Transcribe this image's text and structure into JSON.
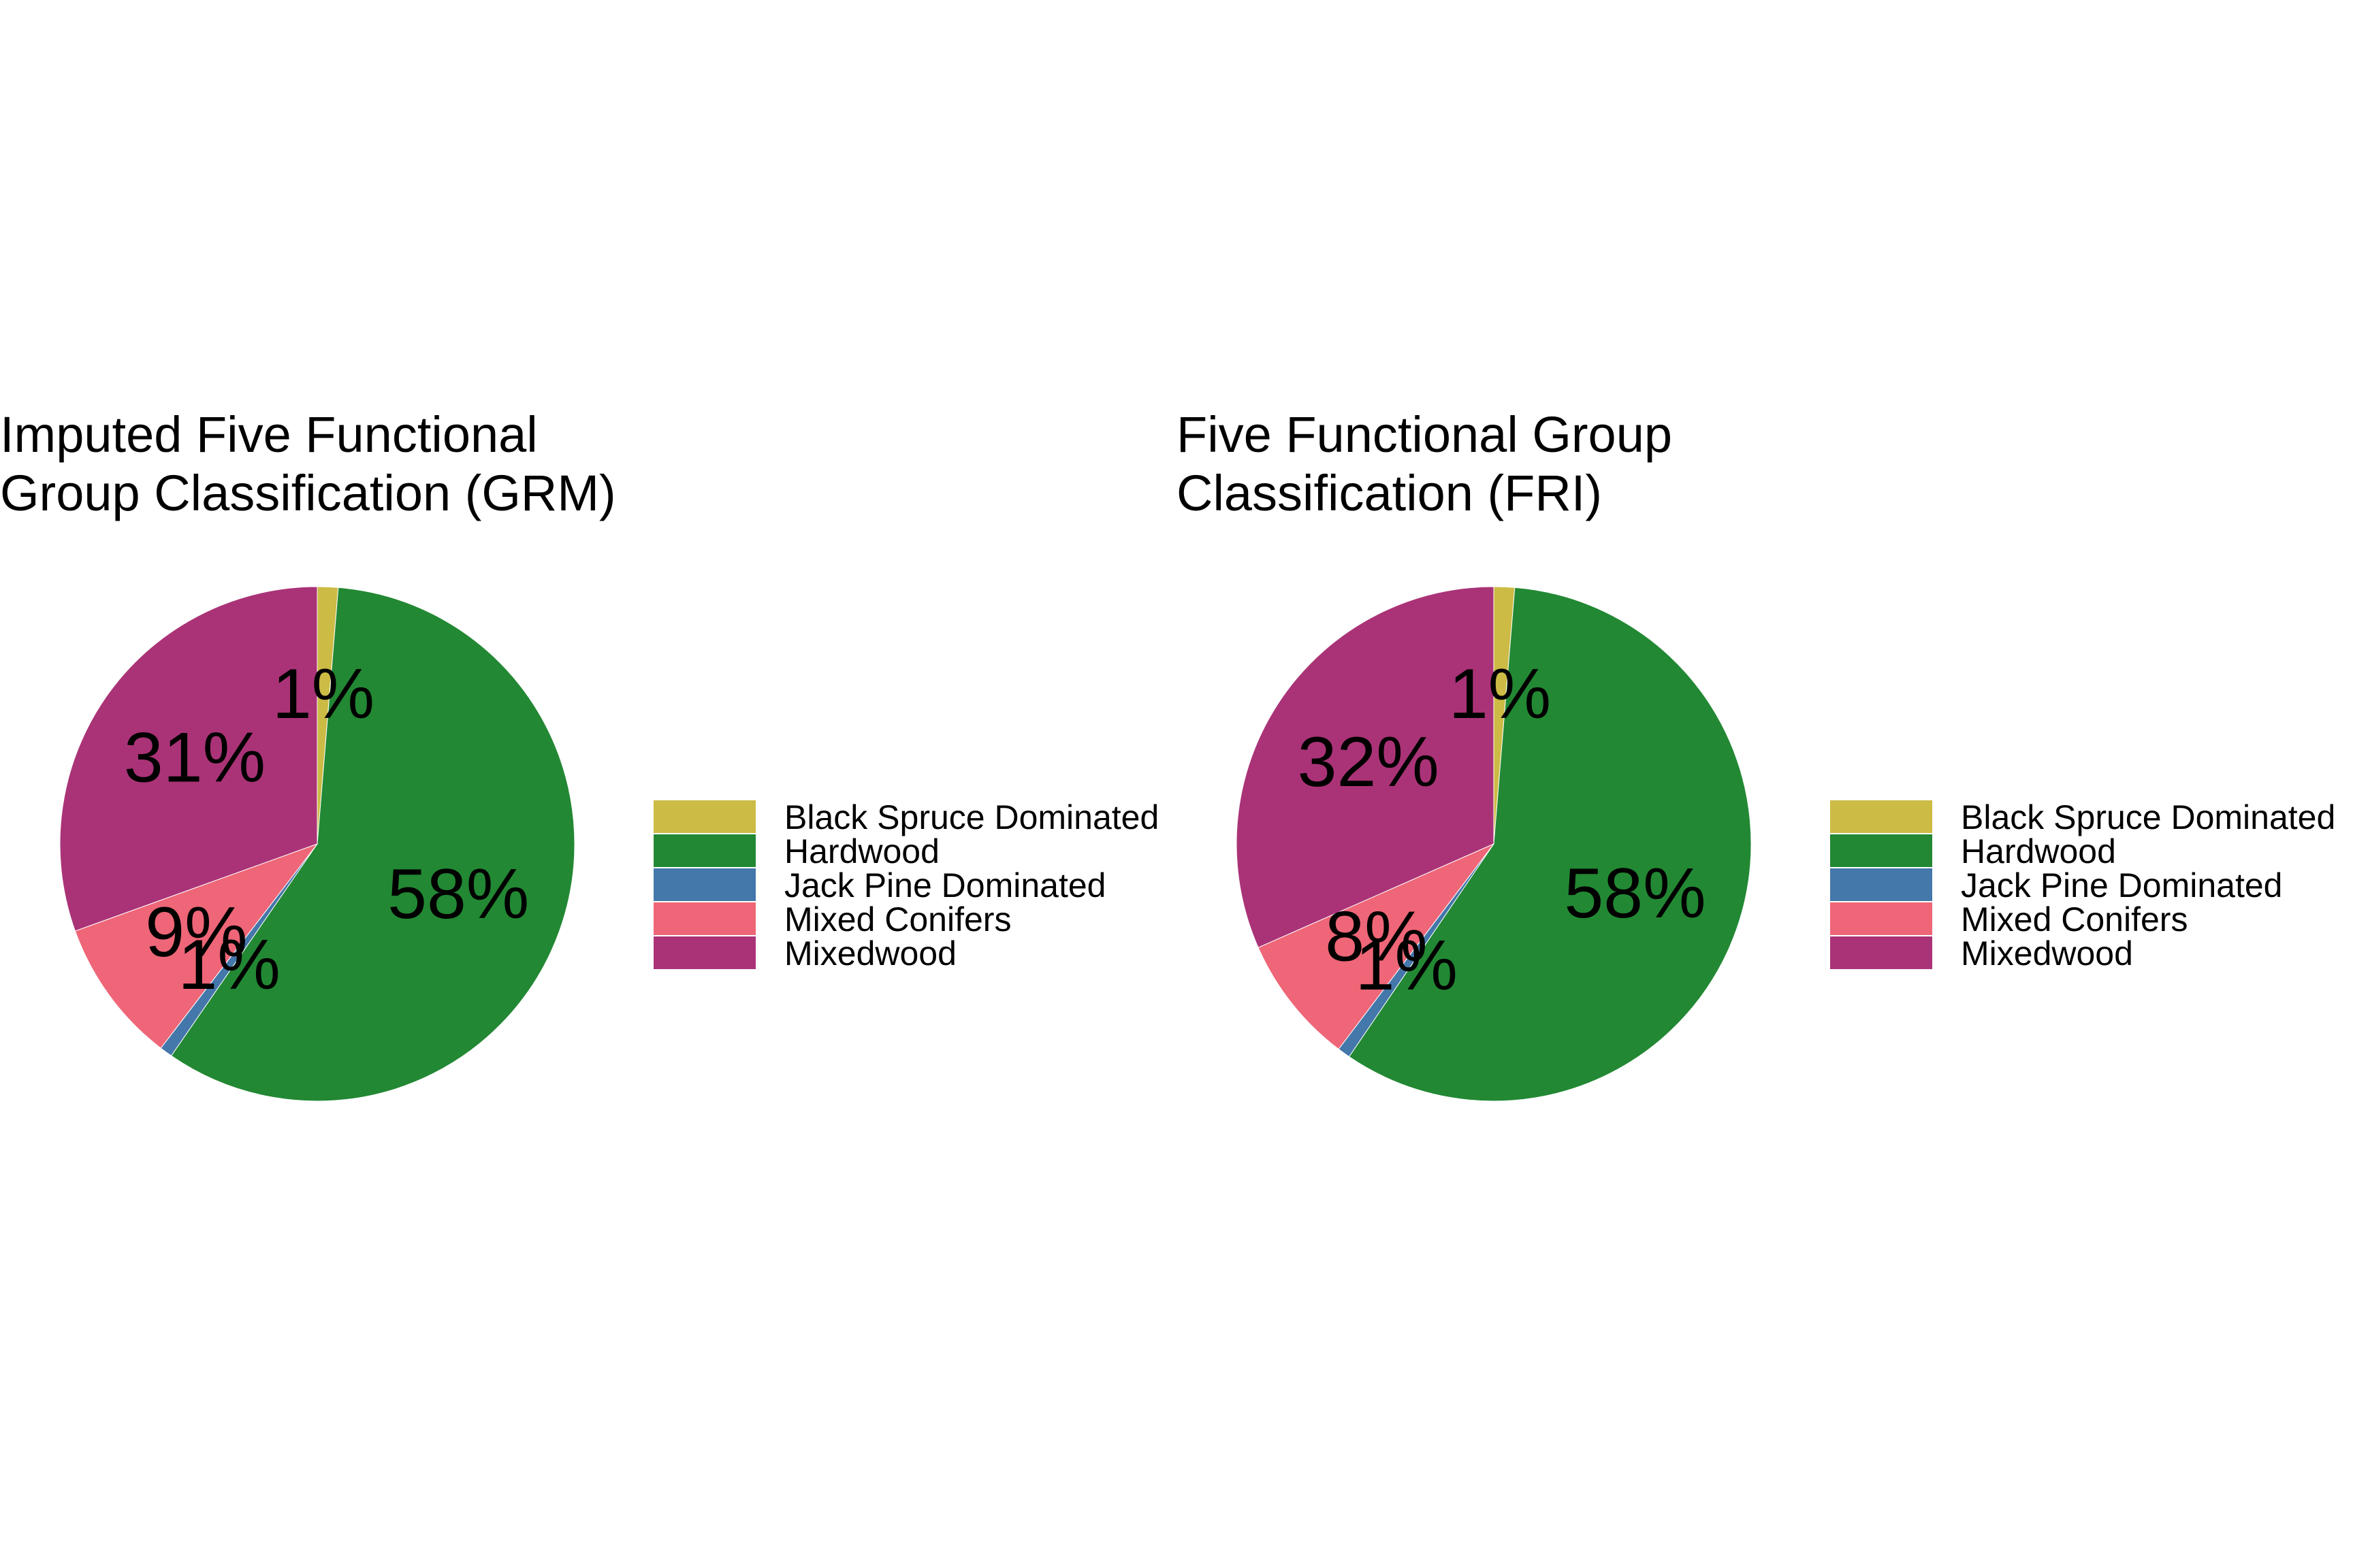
{
  "chart_data": [
    {
      "type": "pie",
      "title": "Imputed Five Functional\nGroup Classification (GRM)",
      "categories": [
        "Black Spruce Dominated",
        "Hardwood",
        "Jack Pine Dominated",
        "Mixed Conifers",
        "Mixedwood"
      ],
      "values": [
        1.3,
        58.3,
        0.8,
        9.1,
        30.5
      ],
      "labels": [
        "1%",
        "58%",
        "1%",
        "9%",
        "31%"
      ],
      "colors": [
        "#CCBB44",
        "#228833",
        "#4477AA",
        "#EE6677",
        "#AA3377"
      ],
      "legend": "right"
    },
    {
      "type": "pie",
      "title": "Five Functional Group\nClassification (FRI)",
      "categories": [
        "Black Spruce Dominated",
        "Hardwood",
        "Jack Pine Dominated",
        "Mixed Conifers",
        "Mixedwood"
      ],
      "values": [
        1.3,
        58.2,
        0.8,
        8.1,
        31.6
      ],
      "labels": [
        "1%",
        "58%",
        "1%",
        "8%",
        "32%"
      ],
      "colors": [
        "#CCBB44",
        "#228833",
        "#4477AA",
        "#EE6677",
        "#AA3377"
      ],
      "legend": "right"
    }
  ]
}
